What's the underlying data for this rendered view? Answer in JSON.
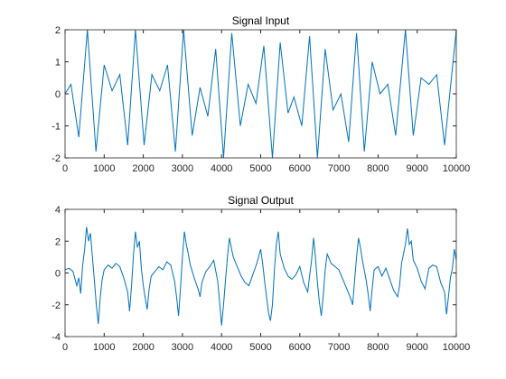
{
  "chart_data": [
    {
      "type": "line",
      "title": "Signal Input",
      "color": "#0072bd",
      "xlim": [
        0,
        10000
      ],
      "xticks": [
        0,
        1000,
        2000,
        3000,
        4000,
        5000,
        6000,
        7000,
        8000,
        9000,
        10000
      ],
      "ylim": [
        -2,
        2
      ],
      "yticks": [
        -2,
        -1,
        0,
        1,
        2
      ],
      "x": [
        0,
        150,
        350,
        570,
        790,
        1000,
        1200,
        1400,
        1600,
        1800,
        2020,
        2220,
        2420,
        2620,
        2820,
        3030,
        3250,
        3450,
        3650,
        3850,
        4050,
        4260,
        4480,
        4680,
        4880,
        5080,
        5300,
        5500,
        5700,
        5850,
        6050,
        6250,
        6450,
        6650,
        6850,
        7050,
        7250,
        7450,
        7650,
        7850,
        8050,
        8250,
        8450,
        8700,
        8900,
        9100,
        9300,
        9500,
        9700,
        10000
      ],
      "values": [
        0,
        0.3,
        -1.35,
        2,
        -1.8,
        0.9,
        0.1,
        0.6,
        -1.6,
        2,
        -1.6,
        0.6,
        0.1,
        0.9,
        -1.8,
        2,
        -1.3,
        0.2,
        -0.7,
        1.4,
        -2,
        1.9,
        -1.0,
        0.3,
        -0.3,
        1.5,
        -2,
        1.6,
        -0.6,
        -0.1,
        -1.0,
        1.8,
        -2,
        1.4,
        -0.5,
        0,
        -1.5,
        1.9,
        -1.8,
        1.0,
        0,
        0.3,
        -1.3,
        2,
        -1.3,
        0.5,
        0.3,
        0.6,
        -1.6,
        2
      ]
    },
    {
      "type": "line",
      "title": "Signal Output",
      "color": "#0072bd",
      "xlim": [
        0,
        10000
      ],
      "xticks": [
        0,
        1000,
        2000,
        3000,
        4000,
        5000,
        6000,
        7000,
        8000,
        9000,
        10000
      ],
      "ylim": [
        -4,
        4
      ],
      "yticks": [
        -4,
        -2,
        0,
        2,
        4
      ],
      "x": [
        0,
        100,
        200,
        300,
        350,
        400,
        450,
        500,
        550,
        600,
        650,
        700,
        750,
        800,
        850,
        900,
        950,
        1000,
        1100,
        1200,
        1300,
        1400,
        1500,
        1600,
        1650,
        1700,
        1750,
        1800,
        1850,
        1900,
        1950,
        2000,
        2050,
        2100,
        2150,
        2200,
        2300,
        2400,
        2500,
        2600,
        2700,
        2800,
        2850,
        2900,
        2950,
        3000,
        3050,
        3100,
        3150,
        3200,
        3300,
        3400,
        3450,
        3500,
        3600,
        3700,
        3800,
        3900,
        3950,
        4000,
        4050,
        4100,
        4150,
        4200,
        4250,
        4300,
        4400,
        4500,
        4600,
        4700,
        4800,
        4900,
        5000,
        5050,
        5100,
        5150,
        5200,
        5250,
        5300,
        5350,
        5400,
        5450,
        5500,
        5600,
        5700,
        5800,
        5900,
        6000,
        6100,
        6200,
        6300,
        6350,
        6400,
        6450,
        6500,
        6550,
        6600,
        6650,
        6700,
        6800,
        6900,
        7000,
        7100,
        7200,
        7300,
        7350,
        7400,
        7450,
        7500,
        7550,
        7600,
        7700,
        7750,
        7800,
        7850,
        7900,
        8000,
        8100,
        8200,
        8300,
        8400,
        8500,
        8550,
        8600,
        8700,
        8750,
        8800,
        8850,
        8900,
        9000,
        9100,
        9200,
        9300,
        9400,
        9500,
        9600,
        9700,
        9750,
        9800,
        9850,
        9900,
        9950,
        10000
      ],
      "values": [
        0.2,
        0.3,
        0.1,
        -0.8,
        -0.3,
        -1.3,
        0.5,
        1.5,
        2.9,
        2.0,
        2.5,
        1.0,
        -0.5,
        -2.0,
        -3.2,
        -1.5,
        -0.4,
        0.2,
        0.5,
        0.3,
        0.6,
        0.4,
        -0.3,
        -1.2,
        -2.4,
        -0.8,
        1.2,
        2.6,
        1.6,
        2.0,
        0.3,
        -0.8,
        -1.6,
        -2.3,
        -1.0,
        -0.2,
        0.1,
        0.4,
        0.2,
        0.7,
        0.5,
        -0.5,
        -1.5,
        -2.7,
        -1.0,
        1.0,
        2.6,
        1.8,
        1.2,
        0.5,
        -0.3,
        -1.0,
        -1.5,
        -0.6,
        0.1,
        0.4,
        0.8,
        -0.5,
        -1.8,
        -3.3,
        -2.0,
        -0.5,
        1.0,
        2.2,
        1.6,
        1.0,
        0.4,
        -0.2,
        -0.6,
        -0.8,
        -0.1,
        0.6,
        1.5,
        0.6,
        -0.5,
        -1.5,
        -2.5,
        -3.0,
        -2.0,
        0.2,
        1.8,
        2.6,
        1.2,
        0.3,
        -0.2,
        -0.4,
        -0.1,
        0.4,
        -0.6,
        -1.2,
        0.8,
        2.2,
        1.0,
        -0.6,
        -1.8,
        -2.7,
        -1.4,
        0.2,
        1.2,
        0.6,
        0.4,
        0.2,
        -0.4,
        -1.0,
        -1.6,
        -2.0,
        -0.5,
        1.0,
        2.2,
        1.6,
        0.8,
        -0.5,
        -1.4,
        -2.4,
        -1.0,
        0.2,
        0.4,
        -0.2,
        0.3,
        -0.4,
        -1.1,
        -1.5,
        -0.8,
        0.6,
        1.8,
        2.8,
        1.8,
        2.0,
        0.8,
        0.3,
        -0.5,
        -1.0,
        0.3,
        0.5,
        0.4,
        -0.6,
        -1.2,
        -2.6,
        -1.5,
        -0.3,
        0.3,
        1.5,
        0.8
      ]
    }
  ]
}
